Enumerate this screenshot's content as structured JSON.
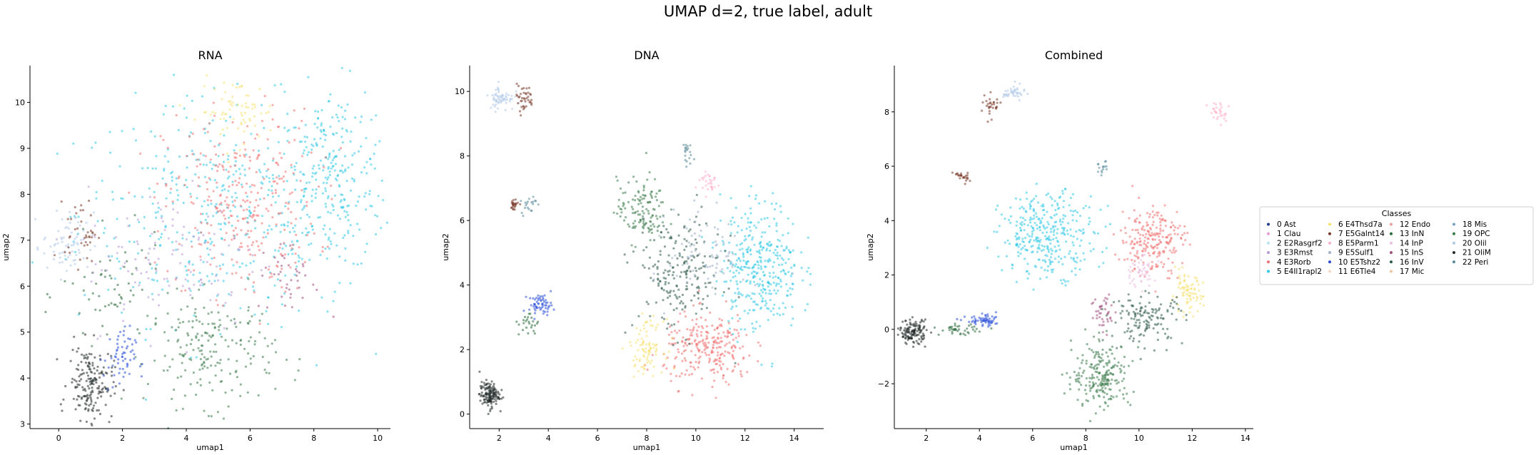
{
  "figure": {
    "title": "UMAP d=2, true label, adult"
  },
  "legend": {
    "title": "Classes",
    "placement": "right",
    "entries": [
      {
        "label": "0 Ast",
        "color": "#1f3b8c"
      },
      {
        "label": "1 Clau",
        "color": "#e89ad8"
      },
      {
        "label": "2 E2Rasgrf2",
        "color": "#b6e3ee"
      },
      {
        "label": "3 E3Rmst",
        "color": "#b89ad8"
      },
      {
        "label": "4 E3Rorb",
        "color": "#f07070"
      },
      {
        "label": "5 E4Il1rapl2",
        "color": "#2fc9e6"
      },
      {
        "label": "6 E4Thsd7a",
        "color": "#f6e070"
      },
      {
        "label": "7 E5Galnt14",
        "color": "#7a3a2a"
      },
      {
        "label": "8 E5Parm1",
        "color": "#ffb0c8"
      },
      {
        "label": "9 E5Sulf1",
        "color": "#9fb0c8"
      },
      {
        "label": "10 E5Tshz2",
        "color": "#2a4ed8"
      },
      {
        "label": "11 E6Tle4",
        "color": "#f6d6c8"
      },
      {
        "label": "12 Endo",
        "color": "#e8a0a0"
      },
      {
        "label": "13 InN",
        "color": "#2a6a3a"
      },
      {
        "label": "14 InP",
        "color": "#e8c0e0"
      },
      {
        "label": "15 InS",
        "color": "#a05080"
      },
      {
        "label": "16 InV",
        "color": "#2e5a4a"
      },
      {
        "label": "17 Mic",
        "color": "#f0c8a0"
      },
      {
        "label": "18 Mis",
        "color": "#7aa0c8"
      },
      {
        "label": "19 OPC",
        "color": "#3a7a4a"
      },
      {
        "label": "20 Olil",
        "color": "#b0c8e8"
      },
      {
        "label": "21 OliM",
        "color": "#202a28"
      },
      {
        "label": "22 Peri",
        "color": "#5a8a9a"
      }
    ]
  },
  "chart_data": [
    {
      "type": "scatter",
      "title": "RNA",
      "xlabel": "umap1",
      "ylabel": "umap2",
      "xlim": [
        -0.9,
        10.4
      ],
      "ylim": [
        2.9,
        10.8
      ],
      "xticks": [
        "0",
        "2",
        "4",
        "6",
        "8",
        "10"
      ],
      "xtick_values": [
        0,
        2,
        4,
        6,
        8,
        10
      ],
      "yticks": [
        "3",
        "4",
        "5",
        "6",
        "7",
        "8",
        "9",
        "10"
      ],
      "ytick_values": [
        3,
        4,
        5,
        6,
        7,
        8,
        9,
        10
      ],
      "clusters": [
        {
          "cls": "5 E4Il1rapl2",
          "cx": 5.0,
          "cy": 7.6,
          "sx": 2.2,
          "sy": 1.2,
          "n": 420
        },
        {
          "cls": "5 E4Il1rapl2",
          "cx": 8.6,
          "cy": 8.3,
          "sx": 0.9,
          "sy": 1.0,
          "n": 260
        },
        {
          "cls": "4 E3Rorb",
          "cx": 5.7,
          "cy": 7.8,
          "sx": 1.2,
          "sy": 1.0,
          "n": 300
        },
        {
          "cls": "6 E4Thsd7a",
          "cx": 5.6,
          "cy": 9.8,
          "sx": 0.6,
          "sy": 0.35,
          "n": 70
        },
        {
          "cls": "19 OPC",
          "cx": 4.8,
          "cy": 4.6,
          "sx": 1.0,
          "sy": 0.6,
          "n": 200
        },
        {
          "cls": "13 InN",
          "cx": 1.7,
          "cy": 5.8,
          "sx": 0.8,
          "sy": 0.6,
          "n": 60
        },
        {
          "cls": "21 OliM",
          "cx": 1.0,
          "cy": 3.9,
          "sx": 0.35,
          "sy": 0.4,
          "n": 180
        },
        {
          "cls": "10 E5Tshz2",
          "cx": 1.9,
          "cy": 4.4,
          "sx": 0.25,
          "sy": 0.35,
          "n": 60
        },
        {
          "cls": "20 Olil",
          "cx": 0.3,
          "cy": 6.9,
          "sx": 0.4,
          "sy": 0.35,
          "n": 70
        },
        {
          "cls": "7 E5Galnt14",
          "cx": 0.7,
          "cy": 7.2,
          "sx": 0.25,
          "sy": 0.35,
          "n": 40
        },
        {
          "cls": "3 E3Rmst",
          "cx": 3.6,
          "cy": 6.6,
          "sx": 1.4,
          "sy": 0.8,
          "n": 120
        },
        {
          "cls": "15 InS",
          "cx": 7.2,
          "cy": 6.2,
          "sx": 0.5,
          "sy": 0.4,
          "n": 40
        }
      ]
    },
    {
      "type": "scatter",
      "title": "DNA",
      "xlabel": "umap1",
      "ylabel": "umap2",
      "xlim": [
        0.8,
        15.2
      ],
      "ylim": [
        -0.45,
        10.8
      ],
      "xticks": [
        "2",
        "4",
        "6",
        "8",
        "10",
        "12",
        "14"
      ],
      "xtick_values": [
        2,
        4,
        6,
        8,
        10,
        12,
        14
      ],
      "yticks": [
        "0",
        "2",
        "4",
        "6",
        "8",
        "10"
      ],
      "ytick_values": [
        0,
        2,
        4,
        6,
        8,
        10
      ],
      "clusters": [
        {
          "cls": "20 Olil",
          "cx": 2.1,
          "cy": 9.8,
          "sx": 0.25,
          "sy": 0.2,
          "n": 60
        },
        {
          "cls": "7 E5Galnt14",
          "cx": 3.0,
          "cy": 9.8,
          "sx": 0.2,
          "sy": 0.2,
          "n": 40
        },
        {
          "cls": "7 E5Galnt14",
          "cx": 2.6,
          "cy": 6.5,
          "sx": 0.12,
          "sy": 0.1,
          "n": 25
        },
        {
          "cls": "22 Peri",
          "cx": 3.2,
          "cy": 6.5,
          "sx": 0.15,
          "sy": 0.15,
          "n": 20
        },
        {
          "cls": "10 E5Tshz2",
          "cx": 3.7,
          "cy": 3.4,
          "sx": 0.25,
          "sy": 0.15,
          "n": 60
        },
        {
          "cls": "13 InN",
          "cx": 3.2,
          "cy": 2.8,
          "sx": 0.2,
          "sy": 0.2,
          "n": 25
        },
        {
          "cls": "21 OliM",
          "cx": 1.6,
          "cy": 0.6,
          "sx": 0.2,
          "sy": 0.2,
          "n": 140
        },
        {
          "cls": "22 Peri",
          "cx": 9.6,
          "cy": 8.1,
          "sx": 0.1,
          "sy": 0.2,
          "n": 20
        },
        {
          "cls": "8 E5Parm1",
          "cx": 10.5,
          "cy": 7.2,
          "sx": 0.25,
          "sy": 0.2,
          "n": 30
        },
        {
          "cls": "19 OPC",
          "cx": 7.8,
          "cy": 6.3,
          "sx": 0.5,
          "sy": 0.5,
          "n": 130
        },
        {
          "cls": "5 E4Il1rapl2",
          "cx": 12.6,
          "cy": 4.6,
          "sx": 0.8,
          "sy": 1.0,
          "n": 360
        },
        {
          "cls": "4 E3Rorb",
          "cx": 10.5,
          "cy": 2.0,
          "sx": 0.9,
          "sy": 0.55,
          "n": 260
        },
        {
          "cls": "6 E4Thsd7a",
          "cx": 8.0,
          "cy": 2.1,
          "sx": 0.35,
          "sy": 0.4,
          "n": 90
        },
        {
          "cls": "16 InV",
          "cx": 9.3,
          "cy": 4.3,
          "sx": 0.9,
          "sy": 0.9,
          "n": 200
        },
        {
          "cls": "9 E5Sulf1",
          "cx": 10.5,
          "cy": 5.0,
          "sx": 0.8,
          "sy": 0.7,
          "n": 80
        }
      ]
    },
    {
      "type": "scatter",
      "title": "Combined",
      "xlabel": "umap1",
      "ylabel": "umap2",
      "xlim": [
        0.8,
        14.3
      ],
      "ylim": [
        -3.65,
        9.7
      ],
      "xticks": [
        "2",
        "4",
        "6",
        "8",
        "10",
        "12",
        "14"
      ],
      "xtick_values": [
        2,
        4,
        6,
        8,
        10,
        12,
        14
      ],
      "yticks": [
        "−2",
        "0",
        "2",
        "4",
        "6",
        "8"
      ],
      "ytick_values": [
        -2,
        0,
        2,
        4,
        6,
        8
      ],
      "clusters": [
        {
          "cls": "7 E5Galnt14",
          "cx": 4.4,
          "cy": 8.2,
          "sx": 0.2,
          "sy": 0.2,
          "n": 30
        },
        {
          "cls": "20 Olil",
          "cx": 5.3,
          "cy": 8.7,
          "sx": 0.2,
          "sy": 0.15,
          "n": 40
        },
        {
          "cls": "8 E5Parm1",
          "cx": 13.0,
          "cy": 8.0,
          "sx": 0.2,
          "sy": 0.2,
          "n": 30
        },
        {
          "cls": "7 E5Galnt14",
          "cx": 3.3,
          "cy": 5.6,
          "sx": 0.15,
          "sy": 0.12,
          "n": 25
        },
        {
          "cls": "22 Peri",
          "cx": 8.6,
          "cy": 5.9,
          "sx": 0.1,
          "sy": 0.15,
          "n": 15
        },
        {
          "cls": "5 E4Il1rapl2",
          "cx": 6.6,
          "cy": 3.5,
          "sx": 0.9,
          "sy": 0.75,
          "n": 340
        },
        {
          "cls": "4 E3Rorb",
          "cx": 10.5,
          "cy": 3.3,
          "sx": 0.6,
          "sy": 0.65,
          "n": 220
        },
        {
          "cls": "14 InP",
          "cx": 10.0,
          "cy": 2.1,
          "sx": 0.3,
          "sy": 0.3,
          "n": 50
        },
        {
          "cls": "6 E4Thsd7a",
          "cx": 11.8,
          "cy": 1.3,
          "sx": 0.3,
          "sy": 0.35,
          "n": 80
        },
        {
          "cls": "16 InV",
          "cx": 10.3,
          "cy": 0.4,
          "sx": 0.7,
          "sy": 0.45,
          "n": 140
        },
        {
          "cls": "15 InS",
          "cx": 8.7,
          "cy": 0.6,
          "sx": 0.25,
          "sy": 0.4,
          "n": 40
        },
        {
          "cls": "19 OPC",
          "cx": 8.6,
          "cy": -1.7,
          "sx": 0.55,
          "sy": 0.6,
          "n": 220
        },
        {
          "cls": "21 OliM",
          "cx": 1.5,
          "cy": -0.1,
          "sx": 0.25,
          "sy": 0.22,
          "n": 130
        },
        {
          "cls": "13 InN",
          "cx": 3.2,
          "cy": 0.0,
          "sx": 0.35,
          "sy": 0.1,
          "n": 40
        },
        {
          "cls": "10 E5Tshz2",
          "cx": 4.2,
          "cy": 0.3,
          "sx": 0.35,
          "sy": 0.1,
          "n": 60
        }
      ]
    }
  ]
}
